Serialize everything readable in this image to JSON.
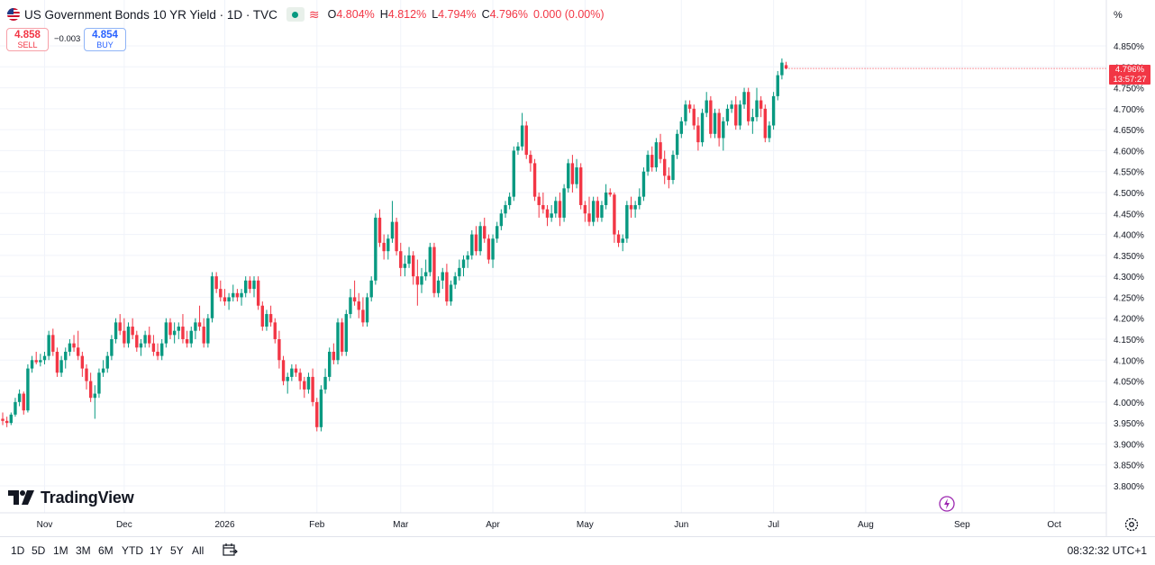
{
  "header": {
    "title": "US Government Bonds 10 YR Yield · 1D · TVC",
    "ohlc": {
      "open_label": "O",
      "open": "4.804%",
      "high_label": "H",
      "high": "4.812%",
      "low_label": "L",
      "low": "4.794%",
      "close_label": "C",
      "close": "4.796%",
      "change": "0.000 (0.00%)"
    },
    "waves_icon": "≋"
  },
  "trade": {
    "sell_price": "4.858",
    "sell_label": "SELL",
    "spread": "−0.003",
    "buy_price": "4.854",
    "buy_label": "BUY"
  },
  "brand": {
    "name": "TradingView"
  },
  "price_scale": {
    "unit": "%",
    "last_price": "4.796%",
    "countdown": "13:57:27"
  },
  "timeframes": [
    "1D",
    "5D",
    "1M",
    "3M",
    "6M",
    "YTD",
    "1Y",
    "5Y",
    "All"
  ],
  "clock": "08:32:32 UTC+1",
  "colors": {
    "up": "#089981",
    "down": "#f23645",
    "grid": "#f0f3fa",
    "text": "#131722"
  },
  "icons": [
    "calendar-range-icon",
    "gear-icon",
    "lightning-icon",
    "eye-icon",
    "flag-icon"
  ],
  "chart_data": {
    "type": "candlestick",
    "ylim": [
      3.78,
      4.87
    ],
    "ytick_labels": [
      "3.800%",
      "3.850%",
      "3.900%",
      "3.950%",
      "4.000%",
      "4.050%",
      "4.100%",
      "4.150%",
      "4.200%",
      "4.250%",
      "4.300%",
      "4.350%",
      "4.400%",
      "4.450%",
      "4.500%",
      "4.550%",
      "4.600%",
      "4.650%",
      "4.700%",
      "4.750%",
      "4.800%",
      "4.850%"
    ],
    "ytick_values": [
      3.8,
      3.85,
      3.9,
      3.95,
      4.0,
      4.05,
      4.1,
      4.15,
      4.2,
      4.25,
      4.3,
      4.35,
      4.4,
      4.45,
      4.5,
      4.55,
      4.6,
      4.65,
      4.7,
      4.75,
      4.8,
      4.85
    ],
    "xtick_labels": [
      "Nov",
      "Dec",
      "2026",
      "Feb",
      "Mar",
      "Apr",
      "May",
      "Jun",
      "Jul",
      "Aug",
      "Sep",
      "Oct"
    ],
    "xtick_bar_index": [
      10,
      29,
      53,
      75,
      95,
      117,
      139,
      162,
      184,
      206,
      229,
      251
    ],
    "grid": true,
    "bars": [
      [
        3.96,
        3.975,
        3.945,
        3.955
      ],
      [
        3.955,
        3.965,
        3.94,
        3.95
      ],
      [
        3.95,
        3.975,
        3.945,
        3.97
      ],
      [
        3.97,
        4.01,
        3.965,
        4.0
      ],
      [
        4.0,
        4.03,
        3.99,
        4.02
      ],
      [
        4.02,
        4.025,
        3.97,
        3.98
      ],
      [
        3.98,
        4.09,
        3.975,
        4.08
      ],
      [
        4.08,
        4.11,
        4.07,
        4.1
      ],
      [
        4.1,
        4.12,
        4.09,
        4.095
      ],
      [
        4.095,
        4.115,
        4.085,
        4.1
      ],
      [
        4.1,
        4.12,
        4.09,
        4.11
      ],
      [
        4.11,
        4.17,
        4.1,
        4.16
      ],
      [
        4.16,
        4.175,
        4.11,
        4.12
      ],
      [
        4.12,
        4.13,
        4.06,
        4.07
      ],
      [
        4.07,
        4.11,
        4.06,
        4.1
      ],
      [
        4.1,
        4.13,
        4.08,
        4.12
      ],
      [
        4.12,
        4.15,
        4.11,
        4.14
      ],
      [
        4.14,
        4.16,
        4.12,
        4.13
      ],
      [
        4.13,
        4.17,
        4.1,
        4.11
      ],
      [
        4.11,
        4.12,
        4.06,
        4.08
      ],
      [
        4.08,
        4.09,
        4.03,
        4.05
      ],
      [
        4.05,
        4.07,
        4.0,
        4.01
      ],
      [
        4.01,
        4.04,
        3.96,
        4.02
      ],
      [
        4.02,
        4.08,
        4.01,
        4.07
      ],
      [
        4.07,
        4.1,
        4.06,
        4.08
      ],
      [
        4.08,
        4.12,
        4.07,
        4.11
      ],
      [
        4.11,
        4.16,
        4.1,
        4.15
      ],
      [
        4.15,
        4.2,
        4.14,
        4.19
      ],
      [
        4.19,
        4.21,
        4.16,
        4.17
      ],
      [
        4.17,
        4.2,
        4.13,
        4.14
      ],
      [
        4.14,
        4.19,
        4.13,
        4.18
      ],
      [
        4.18,
        4.2,
        4.15,
        4.16
      ],
      [
        4.16,
        4.17,
        4.12,
        4.13
      ],
      [
        4.13,
        4.15,
        4.11,
        4.14
      ],
      [
        4.14,
        4.17,
        4.13,
        4.16
      ],
      [
        4.16,
        4.18,
        4.13,
        4.14
      ],
      [
        4.14,
        4.16,
        4.11,
        4.12
      ],
      [
        4.12,
        4.14,
        4.1,
        4.11
      ],
      [
        4.11,
        4.15,
        4.1,
        4.14
      ],
      [
        4.14,
        4.2,
        4.13,
        4.19
      ],
      [
        4.19,
        4.2,
        4.15,
        4.16
      ],
      [
        4.16,
        4.19,
        4.14,
        4.17
      ],
      [
        4.17,
        4.19,
        4.15,
        4.18
      ],
      [
        4.18,
        4.21,
        4.14,
        4.15
      ],
      [
        4.15,
        4.17,
        4.13,
        4.14
      ],
      [
        4.14,
        4.18,
        4.13,
        4.17
      ],
      [
        4.17,
        4.2,
        4.15,
        4.19
      ],
      [
        4.19,
        4.23,
        4.17,
        4.18
      ],
      [
        4.18,
        4.2,
        4.13,
        4.14
      ],
      [
        4.14,
        4.21,
        4.13,
        4.2
      ],
      [
        4.2,
        4.31,
        4.19,
        4.3
      ],
      [
        4.3,
        4.31,
        4.26,
        4.27
      ],
      [
        4.27,
        4.29,
        4.24,
        4.25
      ],
      [
        4.25,
        4.27,
        4.23,
        4.24
      ],
      [
        4.24,
        4.26,
        4.22,
        4.25
      ],
      [
        4.25,
        4.28,
        4.24,
        4.26
      ],
      [
        4.26,
        4.27,
        4.24,
        4.25
      ],
      [
        4.25,
        4.27,
        4.23,
        4.26
      ],
      [
        4.26,
        4.3,
        4.25,
        4.29
      ],
      [
        4.29,
        4.3,
        4.26,
        4.27
      ],
      [
        4.27,
        4.3,
        4.25,
        4.29
      ],
      [
        4.29,
        4.3,
        4.22,
        4.23
      ],
      [
        4.23,
        4.24,
        4.17,
        4.18
      ],
      [
        4.18,
        4.22,
        4.17,
        4.21
      ],
      [
        4.21,
        4.23,
        4.18,
        4.19
      ],
      [
        4.19,
        4.2,
        4.14,
        4.15
      ],
      [
        4.15,
        4.17,
        4.08,
        4.1
      ],
      [
        4.1,
        4.11,
        4.04,
        4.05
      ],
      [
        4.05,
        4.07,
        4.02,
        4.06
      ],
      [
        4.06,
        4.09,
        4.05,
        4.08
      ],
      [
        4.08,
        4.09,
        4.06,
        4.07
      ],
      [
        4.07,
        4.08,
        4.03,
        4.05
      ],
      [
        4.05,
        4.06,
        4.01,
        4.03
      ],
      [
        4.03,
        4.07,
        4.02,
        4.06
      ],
      [
        4.06,
        4.08,
        3.99,
        4.0
      ],
      [
        4.0,
        4.01,
        3.93,
        3.94
      ],
      [
        3.94,
        4.04,
        3.93,
        4.03
      ],
      [
        4.03,
        4.08,
        4.02,
        4.06
      ],
      [
        4.06,
        4.13,
        4.05,
        4.12
      ],
      [
        4.12,
        4.14,
        4.09,
        4.1
      ],
      [
        4.1,
        4.2,
        4.09,
        4.19
      ],
      [
        4.19,
        4.2,
        4.11,
        4.12
      ],
      [
        4.12,
        4.22,
        4.11,
        4.21
      ],
      [
        4.21,
        4.27,
        4.2,
        4.25
      ],
      [
        4.25,
        4.29,
        4.23,
        4.24
      ],
      [
        4.24,
        4.26,
        4.2,
        4.22
      ],
      [
        4.22,
        4.25,
        4.18,
        4.19
      ],
      [
        4.19,
        4.26,
        4.18,
        4.25
      ],
      [
        4.25,
        4.3,
        4.24,
        4.29
      ],
      [
        4.29,
        4.45,
        4.28,
        4.44
      ],
      [
        4.44,
        4.46,
        4.37,
        4.38
      ],
      [
        4.38,
        4.4,
        4.34,
        4.36
      ],
      [
        4.36,
        4.4,
        4.34,
        4.39
      ],
      [
        4.39,
        4.48,
        4.38,
        4.43
      ],
      [
        4.43,
        4.44,
        4.35,
        4.36
      ],
      [
        4.36,
        4.38,
        4.3,
        4.32
      ],
      [
        4.32,
        4.35,
        4.3,
        4.33
      ],
      [
        4.33,
        4.37,
        4.32,
        4.35
      ],
      [
        4.35,
        4.36,
        4.28,
        4.3
      ],
      [
        4.3,
        4.34,
        4.23,
        4.28
      ],
      [
        4.28,
        4.32,
        4.26,
        4.3
      ],
      [
        4.3,
        4.34,
        4.29,
        4.31
      ],
      [
        4.31,
        4.38,
        4.3,
        4.37
      ],
      [
        4.37,
        4.38,
        4.25,
        4.26
      ],
      [
        4.26,
        4.3,
        4.25,
        4.29
      ],
      [
        4.29,
        4.32,
        4.27,
        4.31
      ],
      [
        4.31,
        4.33,
        4.23,
        4.24
      ],
      [
        4.24,
        4.29,
        4.23,
        4.28
      ],
      [
        4.28,
        4.31,
        4.27,
        4.3
      ],
      [
        4.3,
        4.34,
        4.29,
        4.32
      ],
      [
        4.32,
        4.35,
        4.3,
        4.34
      ],
      [
        4.34,
        4.36,
        4.32,
        4.35
      ],
      [
        4.35,
        4.41,
        4.34,
        4.4
      ],
      [
        4.4,
        4.42,
        4.35,
        4.36
      ],
      [
        4.36,
        4.43,
        4.35,
        4.42
      ],
      [
        4.42,
        4.44,
        4.38,
        4.39
      ],
      [
        4.39,
        4.4,
        4.33,
        4.34
      ],
      [
        4.34,
        4.4,
        4.32,
        4.39
      ],
      [
        4.39,
        4.43,
        4.38,
        4.42
      ],
      [
        4.42,
        4.46,
        4.41,
        4.45
      ],
      [
        4.45,
        4.48,
        4.44,
        4.47
      ],
      [
        4.47,
        4.5,
        4.46,
        4.49
      ],
      [
        4.49,
        4.61,
        4.48,
        4.6
      ],
      [
        4.6,
        4.62,
        4.59,
        4.61
      ],
      [
        4.61,
        4.69,
        4.6,
        4.66
      ],
      [
        4.66,
        4.67,
        4.58,
        4.59
      ],
      [
        4.59,
        4.6,
        4.55,
        4.57
      ],
      [
        4.57,
        4.58,
        4.48,
        4.49
      ],
      [
        4.49,
        4.5,
        4.44,
        4.47
      ],
      [
        4.47,
        4.5,
        4.45,
        4.46
      ],
      [
        4.46,
        4.47,
        4.42,
        4.44
      ],
      [
        4.44,
        4.47,
        4.43,
        4.45
      ],
      [
        4.45,
        4.49,
        4.44,
        4.48
      ],
      [
        4.48,
        4.5,
        4.42,
        4.44
      ],
      [
        4.44,
        4.52,
        4.43,
        4.51
      ],
      [
        4.51,
        4.58,
        4.5,
        4.57
      ],
      [
        4.57,
        4.59,
        4.5,
        4.52
      ],
      [
        4.52,
        4.58,
        4.51,
        4.56
      ],
      [
        4.56,
        4.57,
        4.46,
        4.47
      ],
      [
        4.47,
        4.48,
        4.43,
        4.45
      ],
      [
        4.45,
        4.49,
        4.42,
        4.43
      ],
      [
        4.43,
        4.49,
        4.42,
        4.48
      ],
      [
        4.48,
        4.49,
        4.43,
        4.44
      ],
      [
        4.44,
        4.48,
        4.43,
        4.47
      ],
      [
        4.47,
        4.52,
        4.46,
        4.5
      ],
      [
        4.5,
        4.51,
        4.49,
        4.495
      ],
      [
        4.495,
        4.5,
        4.38,
        4.4
      ],
      [
        4.4,
        4.41,
        4.37,
        4.38
      ],
      [
        4.38,
        4.4,
        4.36,
        4.39
      ],
      [
        4.39,
        4.48,
        4.38,
        4.47
      ],
      [
        4.47,
        4.49,
        4.44,
        4.46
      ],
      [
        4.46,
        4.48,
        4.44,
        4.47
      ],
      [
        4.47,
        4.51,
        4.46,
        4.49
      ],
      [
        4.49,
        4.56,
        4.48,
        4.55
      ],
      [
        4.55,
        4.6,
        4.54,
        4.59
      ],
      [
        4.59,
        4.61,
        4.55,
        4.56
      ],
      [
        4.56,
        4.63,
        4.55,
        4.62
      ],
      [
        4.62,
        4.64,
        4.57,
        4.58
      ],
      [
        4.58,
        4.6,
        4.52,
        4.54
      ],
      [
        4.54,
        4.56,
        4.51,
        4.53
      ],
      [
        4.53,
        4.6,
        4.52,
        4.59
      ],
      [
        4.59,
        4.65,
        4.58,
        4.64
      ],
      [
        4.64,
        4.68,
        4.63,
        4.67
      ],
      [
        4.67,
        4.72,
        4.66,
        4.71
      ],
      [
        4.71,
        4.72,
        4.69,
        4.7
      ],
      [
        4.7,
        4.71,
        4.65,
        4.66
      ],
      [
        4.66,
        4.68,
        4.6,
        4.62
      ],
      [
        4.62,
        4.7,
        4.61,
        4.69
      ],
      [
        4.69,
        4.74,
        4.68,
        4.72
      ],
      [
        4.72,
        4.73,
        4.63,
        4.64
      ],
      [
        4.64,
        4.7,
        4.63,
        4.69
      ],
      [
        4.69,
        4.7,
        4.61,
        4.63
      ],
      [
        4.63,
        4.68,
        4.6,
        4.67
      ],
      [
        4.67,
        4.71,
        4.66,
        4.7
      ],
      [
        4.7,
        4.72,
        4.69,
        4.71
      ],
      [
        4.71,
        4.73,
        4.65,
        4.66
      ],
      [
        4.66,
        4.72,
        4.65,
        4.71
      ],
      [
        4.71,
        4.75,
        4.7,
        4.74
      ],
      [
        4.74,
        4.75,
        4.66,
        4.67
      ],
      [
        4.67,
        4.7,
        4.64,
        4.68
      ],
      [
        4.68,
        4.75,
        4.67,
        4.72
      ],
      [
        4.72,
        4.73,
        4.68,
        4.7
      ],
      [
        4.7,
        4.71,
        4.62,
        4.63
      ],
      [
        4.63,
        4.67,
        4.62,
        4.66
      ],
      [
        4.66,
        4.74,
        4.65,
        4.73
      ],
      [
        4.73,
        4.79,
        4.72,
        4.78
      ],
      [
        4.78,
        4.82,
        4.77,
        4.81
      ],
      [
        4.804,
        4.812,
        4.794,
        4.796
      ]
    ]
  }
}
